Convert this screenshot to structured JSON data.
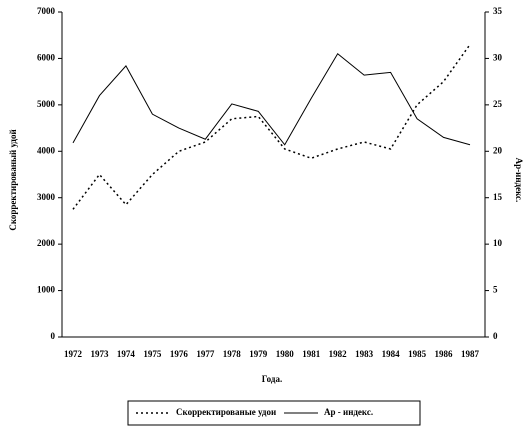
{
  "chart_data": {
    "type": "line",
    "categories": [
      "1972",
      "1973",
      "1974",
      "1975",
      "1976",
      "1977",
      "1978",
      "1979",
      "1980",
      "1981",
      "1982",
      "1983",
      "1984",
      "1985",
      "1986",
      "1987"
    ],
    "x_label": "Года.",
    "y_label": "Скорректированый удой",
    "y2_label": "Ар-индекс.",
    "ylim": [
      0,
      7000
    ],
    "yticks": [
      0,
      1000,
      2000,
      3000,
      4000,
      5000,
      6000,
      7000
    ],
    "y2lim": [
      0,
      35
    ],
    "y2ticks": [
      0,
      5,
      10,
      15,
      20,
      25,
      30,
      35
    ],
    "legend": "bottom",
    "series": [
      {
        "name": "Скорректированые удои",
        "color": "#000000",
        "dash": "dotted",
        "values": [
          2750,
          3500,
          2850,
          3500,
          4000,
          4200,
          4700,
          4750,
          4050,
          3850,
          4050,
          4200,
          4050,
          5000,
          5500,
          6300
        ]
      },
      {
        "name": "Ар - индекс.",
        "color": "#000000",
        "dash": "solid",
        "axis": "y2",
        "values": [
          20.9,
          26,
          29.2,
          24,
          22.5,
          21.3,
          25.1,
          24.3,
          20.7,
          25.7,
          30.5,
          28.2,
          28.5,
          23.5,
          21.5,
          20.7
        ]
      }
    ]
  }
}
